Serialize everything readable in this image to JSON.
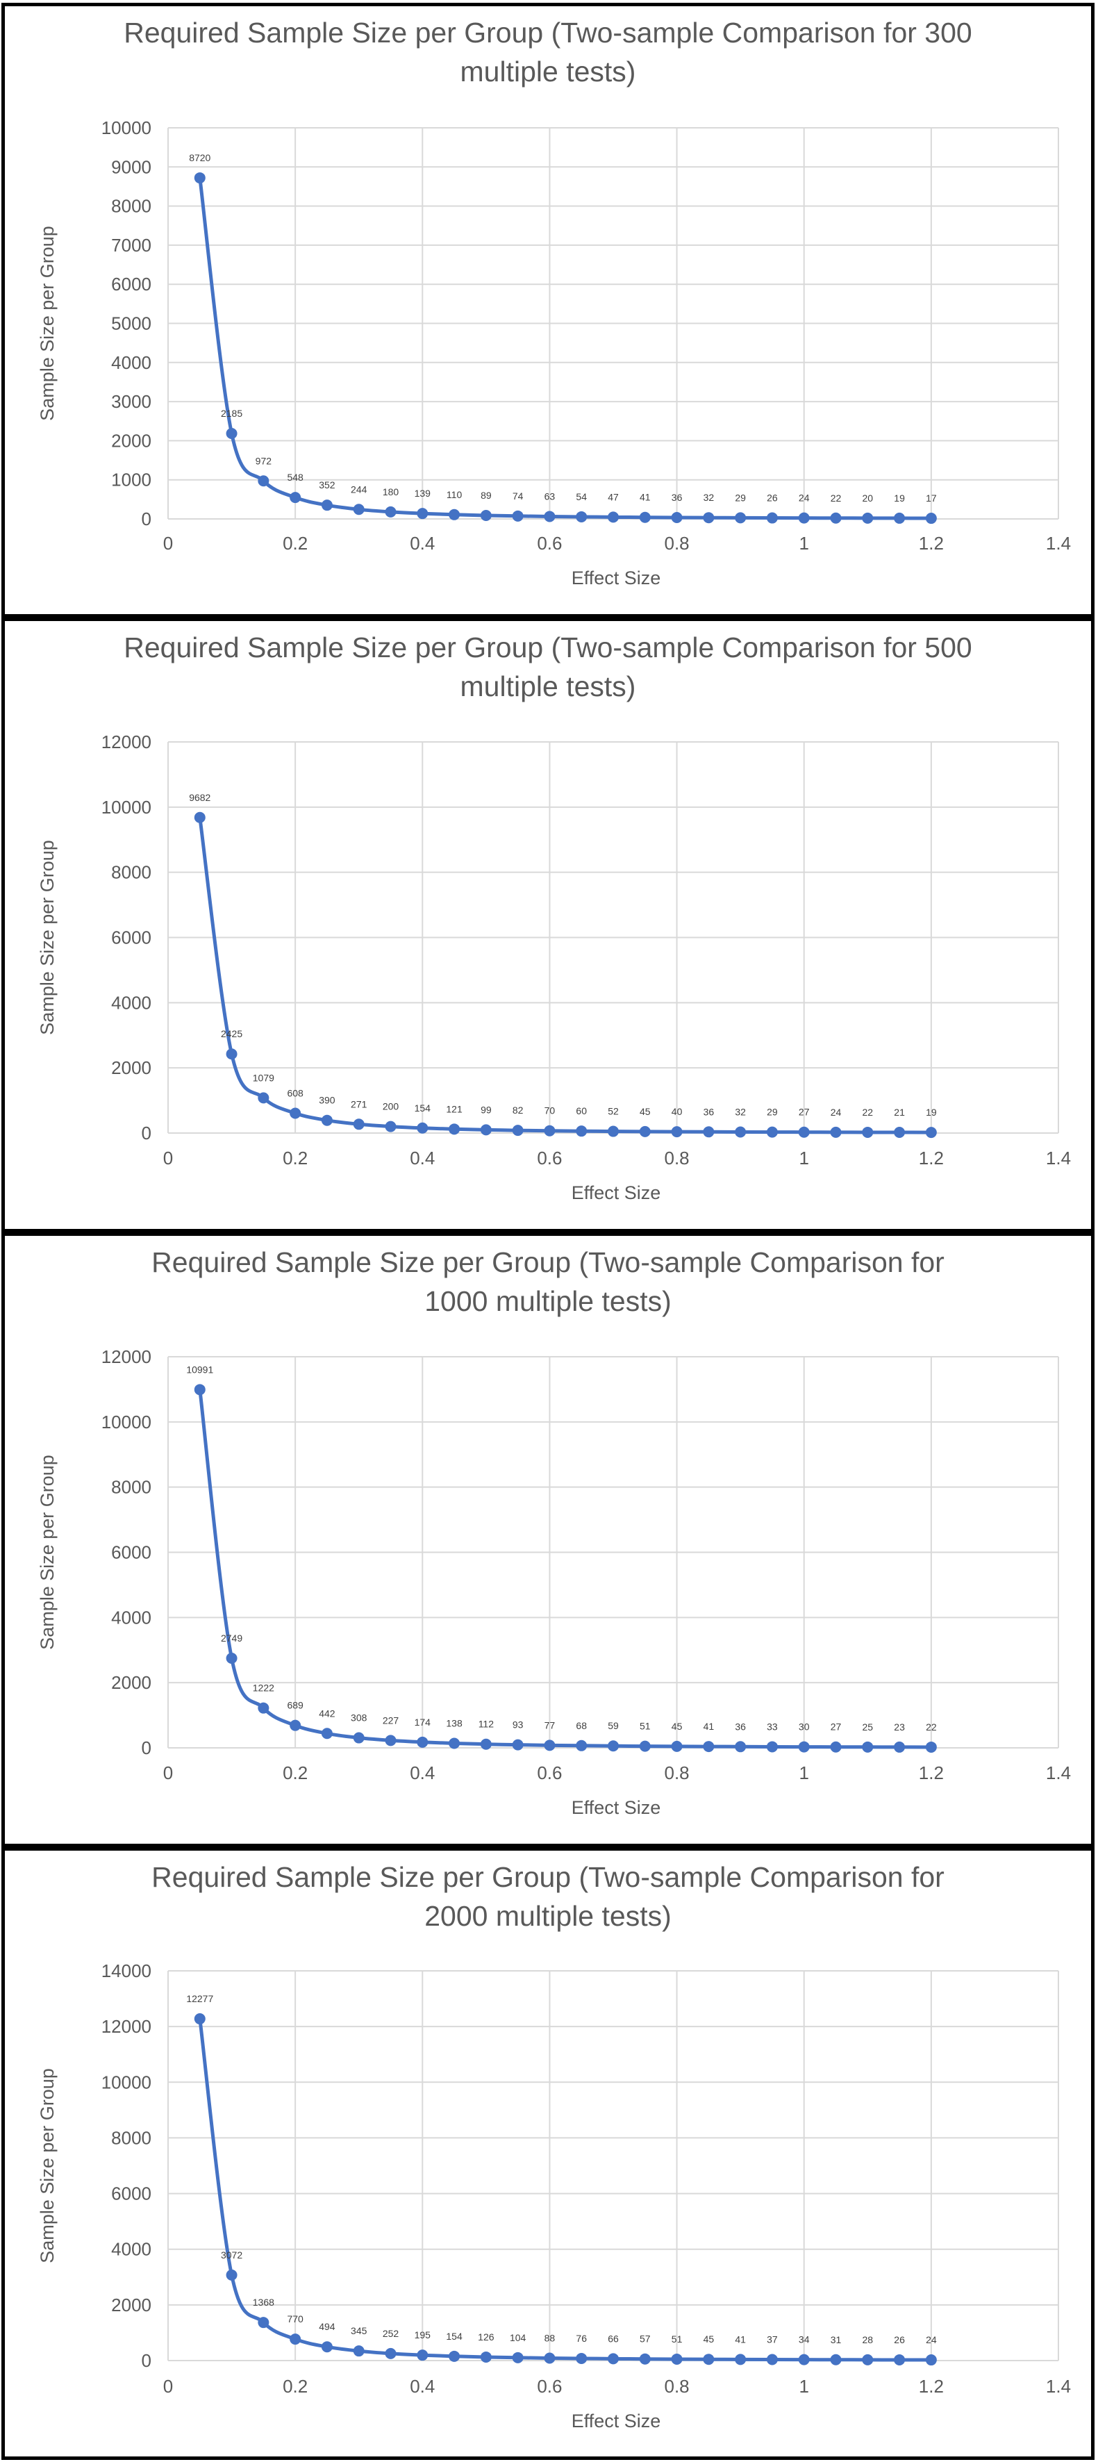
{
  "chart_data": [
    {
      "type": "scatter",
      "title_line1": "Required Sample Size per Group (Two-sample Comparison for 300",
      "title_line2": "multiple tests)",
      "xlabel": "Effect Size",
      "ylabel": "Sample Size per Group",
      "xlim": [
        0,
        1.4
      ],
      "ylim": [
        0,
        10000
      ],
      "xticks": [
        0,
        0.2,
        0.4,
        0.6,
        0.8,
        1,
        1.2,
        1.4
      ],
      "yticks": [
        0,
        1000,
        2000,
        3000,
        4000,
        5000,
        6000,
        7000,
        8000,
        9000,
        10000
      ],
      "grid": true,
      "series_color": "#4472c4",
      "x": [
        0.05,
        0.1,
        0.15,
        0.2,
        0.25,
        0.3,
        0.35,
        0.4,
        0.45,
        0.5,
        0.55,
        0.6,
        0.65,
        0.7,
        0.75,
        0.8,
        0.85,
        0.9,
        0.95,
        1.0,
        1.05,
        1.1,
        1.15,
        1.2
      ],
      "values": [
        8720,
        2185,
        972,
        548,
        352,
        244,
        180,
        139,
        110,
        89,
        74,
        63,
        54,
        47,
        41,
        36,
        32,
        29,
        26,
        24,
        22,
        20,
        19,
        17
      ]
    },
    {
      "type": "scatter",
      "title_line1": "Required Sample Size per Group (Two-sample Comparison for 500",
      "title_line2": "multiple tests)",
      "xlabel": "Effect Size",
      "ylabel": "Sample Size per Group",
      "xlim": [
        0,
        1.4
      ],
      "ylim": [
        0,
        12000
      ],
      "xticks": [
        0,
        0.2,
        0.4,
        0.6,
        0.8,
        1,
        1.2,
        1.4
      ],
      "yticks": [
        0,
        2000,
        4000,
        6000,
        8000,
        10000,
        12000
      ],
      "grid": true,
      "series_color": "#4472c4",
      "x": [
        0.05,
        0.1,
        0.15,
        0.2,
        0.25,
        0.3,
        0.35,
        0.4,
        0.45,
        0.5,
        0.55,
        0.6,
        0.65,
        0.7,
        0.75,
        0.8,
        0.85,
        0.9,
        0.95,
        1.0,
        1.05,
        1.1,
        1.15,
        1.2
      ],
      "values": [
        9682,
        2425,
        1079,
        608,
        390,
        271,
        200,
        154,
        121,
        99,
        82,
        70,
        60,
        52,
        45,
        40,
        36,
        32,
        29,
        27,
        24,
        22,
        21,
        19
      ]
    },
    {
      "type": "scatter",
      "title_line1": "Required Sample Size per Group (Two-sample Comparison for",
      "title_line2": "1000 multiple tests)",
      "xlabel": "Effect Size",
      "ylabel": "Sample Size per Group",
      "xlim": [
        0,
        1.4
      ],
      "ylim": [
        0,
        12000
      ],
      "xticks": [
        0,
        0.2,
        0.4,
        0.6,
        0.8,
        1,
        1.2,
        1.4
      ],
      "yticks": [
        0,
        2000,
        4000,
        6000,
        8000,
        10000,
        12000
      ],
      "grid": true,
      "series_color": "#4472c4",
      "x": [
        0.05,
        0.1,
        0.15,
        0.2,
        0.25,
        0.3,
        0.35,
        0.4,
        0.45,
        0.5,
        0.55,
        0.6,
        0.65,
        0.7,
        0.75,
        0.8,
        0.85,
        0.9,
        0.95,
        1.0,
        1.05,
        1.1,
        1.15,
        1.2
      ],
      "values": [
        10991,
        2749,
        1222,
        689,
        442,
        308,
        227,
        174,
        138,
        112,
        93,
        77,
        68,
        59,
        51,
        45,
        41,
        36,
        33,
        30,
        27,
        25,
        23,
        22
      ]
    },
    {
      "type": "scatter",
      "title_line1": "Required Sample Size per Group (Two-sample Comparison for",
      "title_line2": "2000 multiple tests)",
      "xlabel": "Effect Size",
      "ylabel": "Sample Size per Group",
      "xlim": [
        0,
        1.4
      ],
      "ylim": [
        0,
        14000
      ],
      "xticks": [
        0,
        0.2,
        0.4,
        0.6,
        0.8,
        1,
        1.2,
        1.4
      ],
      "yticks": [
        0,
        2000,
        4000,
        6000,
        8000,
        10000,
        12000,
        14000
      ],
      "grid": true,
      "series_color": "#4472c4",
      "x": [
        0.05,
        0.1,
        0.15,
        0.2,
        0.25,
        0.3,
        0.35,
        0.4,
        0.45,
        0.5,
        0.55,
        0.6,
        0.65,
        0.7,
        0.75,
        0.8,
        0.85,
        0.9,
        0.95,
        1.0,
        1.05,
        1.1,
        1.15,
        1.2
      ],
      "values": [
        12277,
        3072,
        1368,
        770,
        494,
        345,
        252,
        195,
        154,
        126,
        104,
        88,
        76,
        66,
        57,
        51,
        45,
        41,
        37,
        34,
        31,
        28,
        26,
        24
      ]
    }
  ]
}
